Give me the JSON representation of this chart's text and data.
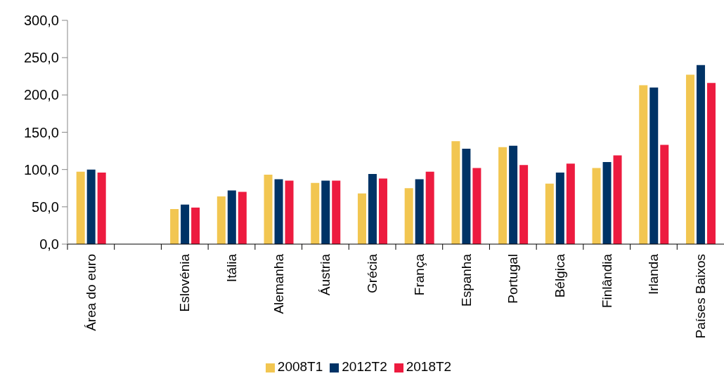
{
  "chart_data": {
    "type": "bar",
    "categories": [
      "Área do euro",
      null,
      "Eslovénia",
      "Itália",
      "Alemanha",
      "Áustria",
      "Grécia",
      "França",
      "Espanha",
      "Portugal",
      "Bélgica",
      "Finlândia",
      "Irlanda",
      "Países Baixos"
    ],
    "series": [
      {
        "name": "2008T1",
        "color": "#f2c651",
        "values": [
          97,
          null,
          47,
          64,
          93,
          82,
          68,
          75,
          138,
          130,
          81,
          102,
          213,
          227
        ]
      },
      {
        "name": "2012T2",
        "color": "#003366",
        "values": [
          100,
          null,
          53,
          72,
          87,
          85,
          94,
          87,
          128,
          132,
          96,
          110,
          210,
          240
        ]
      },
      {
        "name": "2018T2",
        "color": "#ed1b3f",
        "values": [
          96,
          null,
          49,
          70,
          85,
          85,
          88,
          97,
          102,
          106,
          108,
          119,
          133,
          216
        ]
      }
    ],
    "ylim": [
      0,
      300
    ],
    "yticks": [
      {
        "value": 0,
        "label": "0,0"
      },
      {
        "value": 50,
        "label": "50,0"
      },
      {
        "value": 100,
        "label": "100,0"
      },
      {
        "value": 150,
        "label": "150,0"
      },
      {
        "value": 200,
        "label": "200,0"
      },
      {
        "value": 250,
        "label": "250,0"
      },
      {
        "value": 300,
        "label": "300,0"
      }
    ],
    "legend": "bottom"
  }
}
